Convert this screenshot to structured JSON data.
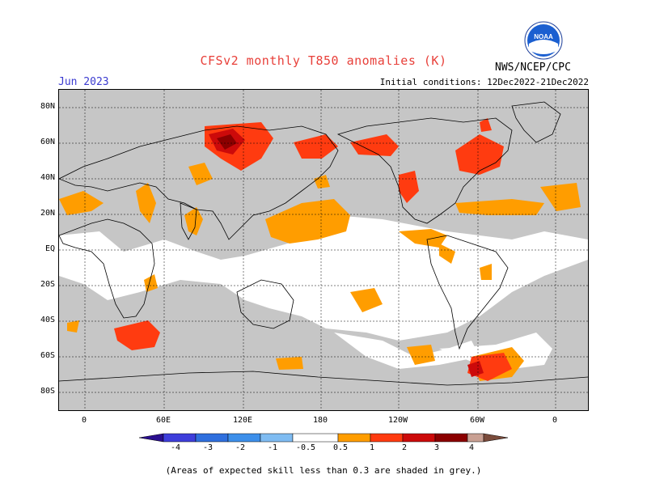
{
  "title": "CFSv2 monthly T850 anomalies (K)",
  "valid_month": "Jun 2023",
  "initial_conditions": "Initial conditions: 12Dec2022-21Dec2022",
  "agency": "NWS/NCEP/CPC",
  "logo_text": "NOAA",
  "footnote": "(Areas of expected skill less than 0.3 are shaded in grey.)",
  "y_labels": [
    "80N",
    "60N",
    "40N",
    "20N",
    "EQ",
    "20S",
    "40S",
    "60S",
    "80S"
  ],
  "x_labels": [
    "0",
    "60E",
    "120E",
    "180",
    "120W",
    "60W",
    "0"
  ],
  "colorbar": {
    "labels": [
      "-4",
      "-3",
      "-2",
      "-1",
      "-0.5",
      "0.5",
      "1",
      "2",
      "3",
      "4"
    ],
    "colors": [
      "#2a0f8f",
      "#3e3edb",
      "#2f6fde",
      "#3d8fea",
      "#7fbcf2",
      "#ffffff",
      "#ff9d00",
      "#ff3b10",
      "#cc0a0a",
      "#8b0000",
      "#c9a093",
      "#7a4b3b"
    ]
  },
  "colors": {
    "grey_low_skill": "#c6c6c6",
    "neutral": "#ffffff",
    "anom_0_5_1": "#ff9d00",
    "anom_1_2": "#ff3b10",
    "anom_2_3": "#cc0a0a",
    "anom_3_4": "#8b0000"
  }
}
